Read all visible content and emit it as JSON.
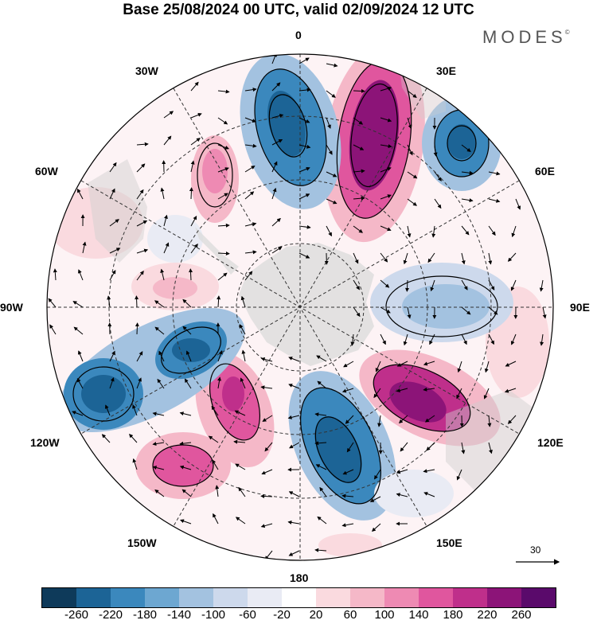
{
  "title": "Base 25/08/2024 00 UTC, valid 02/09/2024 12 UTC",
  "brand": "MODES",
  "brand_mark": "©",
  "longitudes": [
    {
      "key": "lon-0",
      "text": "0"
    },
    {
      "key": "lon-30e",
      "text": "30E"
    },
    {
      "key": "lon-60e",
      "text": "60E"
    },
    {
      "key": "lon-90e",
      "text": "90E"
    },
    {
      "key": "lon-120e",
      "text": "120E"
    },
    {
      "key": "lon-150e",
      "text": "150E"
    },
    {
      "key": "lon-180",
      "text": "180"
    },
    {
      "key": "lon-150w",
      "text": "150W"
    },
    {
      "key": "lon-120w",
      "text": "120W"
    },
    {
      "key": "lon-90w",
      "text": "90W"
    },
    {
      "key": "lon-60w",
      "text": "60W"
    },
    {
      "key": "lon-30w",
      "text": "30W"
    }
  ],
  "reference_vector": "30",
  "colorbar": {
    "colors": [
      "#0e3a5a",
      "#1c6496",
      "#3b88bd",
      "#6da7d1",
      "#a3c2e0",
      "#cdd9ec",
      "#e9ebf4",
      "#ffffff",
      "#fadadf",
      "#f5b8c8",
      "#ee8ab3",
      "#e0569e",
      "#bf2f8b",
      "#8c1478",
      "#5a0a6b"
    ],
    "ticks": [
      "-260",
      "-220",
      "-180",
      "-140",
      "-100",
      "-60",
      "-20",
      "20",
      "60",
      "100",
      "140",
      "180",
      "220",
      "260"
    ]
  }
}
